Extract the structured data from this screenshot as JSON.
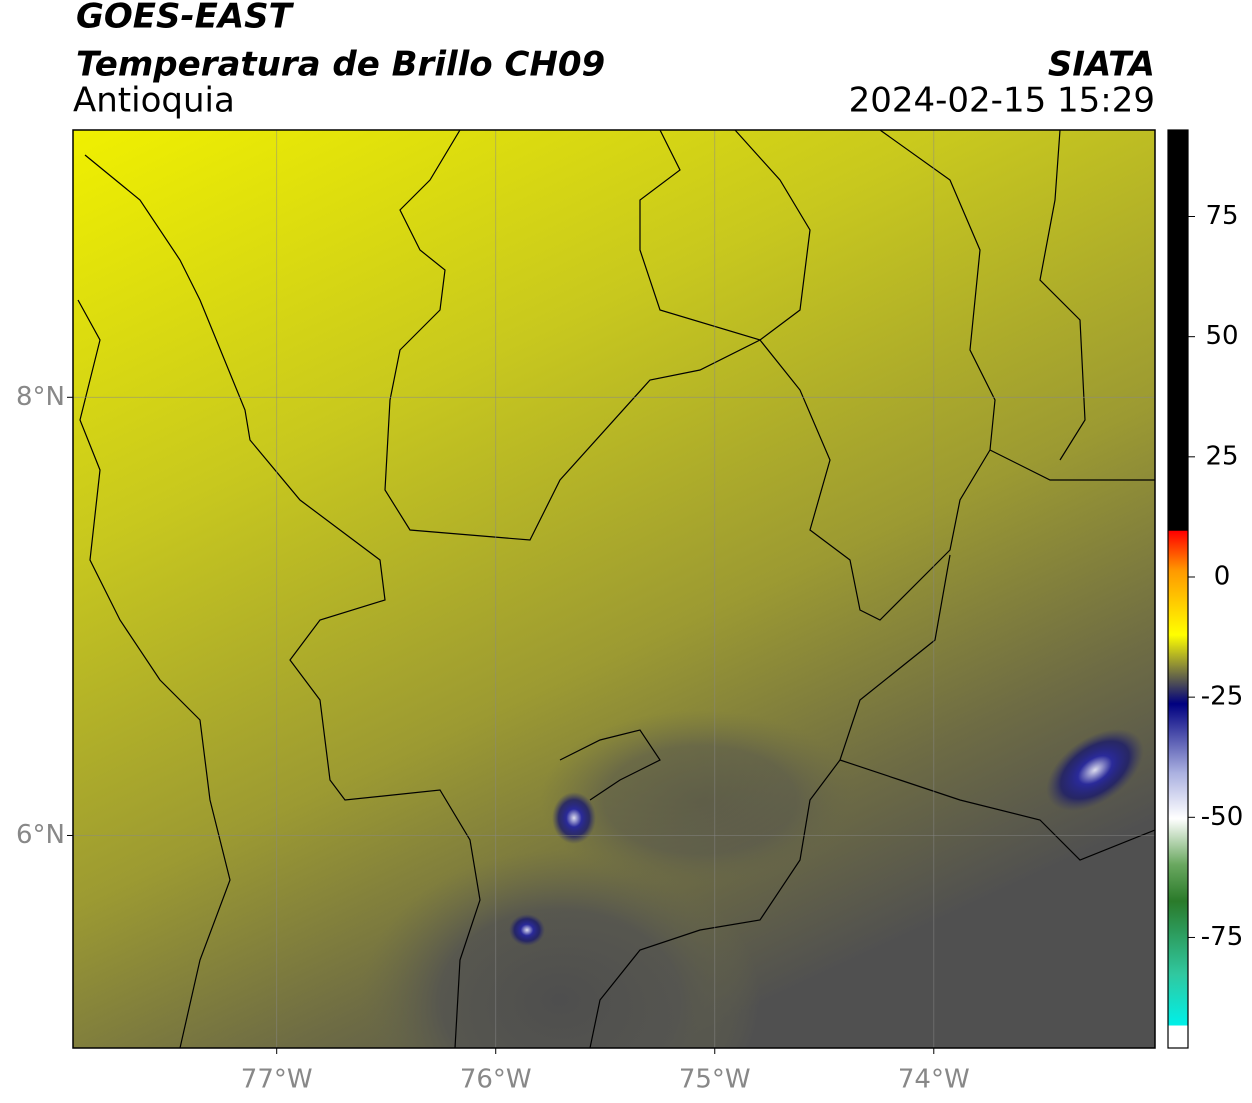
{
  "header": {
    "title": "GOES-EAST",
    "subtitle": "Temperatura de Brillo CH09",
    "region": "Antioquia",
    "source": "SIATA",
    "datetime": "2024-02-15 15:29"
  },
  "map": {
    "xlim": [
      -77.93,
      -72.99
    ],
    "ylim": [
      5.03,
      9.22
    ],
    "xticks": [
      {
        "value": -77,
        "label": "77°W"
      },
      {
        "value": -76,
        "label": "76°W"
      },
      {
        "value": -75,
        "label": "75°W"
      },
      {
        "value": -74,
        "label": "74°W"
      }
    ],
    "yticks": [
      {
        "value": 6,
        "label": "6°N"
      },
      {
        "value": 8,
        "label": "8°N"
      }
    ]
  },
  "colorbar": {
    "lim": [
      -98,
      93
    ],
    "ticks": [
      -75,
      -50,
      -25,
      0,
      25,
      50,
      75
    ]
  }
}
